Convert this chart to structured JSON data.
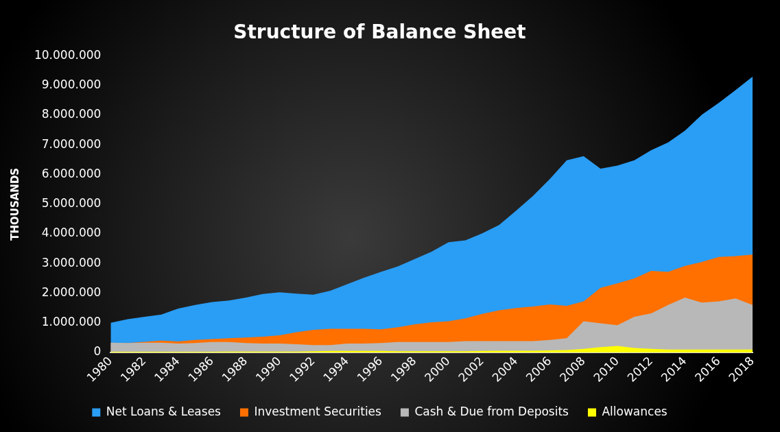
{
  "chart_data": {
    "type": "area",
    "title": "Structure of Balance Sheet",
    "ylabel": "THOUSANDS",
    "x": [
      1980,
      1981,
      1982,
      1983,
      1984,
      1985,
      1986,
      1987,
      1988,
      1989,
      1990,
      1991,
      1992,
      1993,
      1994,
      1995,
      1996,
      1997,
      1998,
      1999,
      2000,
      2001,
      2002,
      2003,
      2004,
      2005,
      2006,
      2007,
      2008,
      2009,
      2010,
      2011,
      2012,
      2013,
      2014,
      2015,
      2016,
      2017,
      2018
    ],
    "xlim": [
      1980,
      2018
    ],
    "xticks": [
      1980,
      1982,
      1984,
      1986,
      1988,
      1990,
      1992,
      1994,
      1996,
      1998,
      2000,
      2002,
      2004,
      2006,
      2008,
      2010,
      2012,
      2014,
      2016,
      2018
    ],
    "ylim": [
      0,
      10000000
    ],
    "yticks": [
      {
        "value": 0,
        "label": "0"
      },
      {
        "value": 1000000,
        "label": "1.000.000"
      },
      {
        "value": 2000000,
        "label": "2.000.000"
      },
      {
        "value": 3000000,
        "label": "3.000.000"
      },
      {
        "value": 4000000,
        "label": "4.000.000"
      },
      {
        "value": 5000000,
        "label": "5.000.000"
      },
      {
        "value": 6000000,
        "label": "6.000.000"
      },
      {
        "value": 7000000,
        "label": "7.000.000"
      },
      {
        "value": 8000000,
        "label": "8.000.000"
      },
      {
        "value": 9000000,
        "label": "9.000.000"
      },
      {
        "value": 10000000,
        "label": "10.000.000"
      }
    ],
    "grid": false,
    "legend": "bottom",
    "series": [
      {
        "name": "Net Loans & Leases",
        "color": "#2a9df4",
        "values": [
          1000000,
          1120000,
          1200000,
          1280000,
          1480000,
          1600000,
          1700000,
          1750000,
          1850000,
          1970000,
          2030000,
          1980000,
          1950000,
          2080000,
          2300000,
          2520000,
          2720000,
          2900000,
          3150000,
          3400000,
          3720000,
          3780000,
          4020000,
          4300000,
          4780000,
          5280000,
          5850000,
          6480000,
          6620000,
          6200000,
          6300000,
          6480000,
          6820000,
          7080000,
          7480000,
          8020000,
          8420000,
          8850000,
          9300000
        ]
      },
      {
        "name": "Investment Securities",
        "color": "#ff7000",
        "values": [
          330000,
          320000,
          360000,
          400000,
          370000,
          420000,
          450000,
          480000,
          500000,
          530000,
          580000,
          680000,
          760000,
          800000,
          800000,
          800000,
          780000,
          850000,
          950000,
          1020000,
          1050000,
          1150000,
          1300000,
          1420000,
          1500000,
          1550000,
          1620000,
          1570000,
          1720000,
          2180000,
          2330000,
          2500000,
          2750000,
          2720000,
          2920000,
          3050000,
          3220000,
          3250000,
          3300000
        ]
      },
      {
        "name": "Cash & Due from Deposits",
        "color": "#b8b8b8",
        "values": [
          330000,
          320000,
          330000,
          330000,
          300000,
          320000,
          350000,
          350000,
          320000,
          300000,
          300000,
          280000,
          250000,
          250000,
          300000,
          300000,
          320000,
          350000,
          350000,
          350000,
          350000,
          380000,
          380000,
          380000,
          380000,
          380000,
          420000,
          480000,
          1050000,
          980000,
          920000,
          1200000,
          1320000,
          1600000,
          1850000,
          1680000,
          1720000,
          1820000,
          1600000
        ]
      },
      {
        "name": "Allowances",
        "color": "#ffff00",
        "values": [
          20000,
          20000,
          20000,
          20000,
          20000,
          20000,
          20000,
          30000,
          30000,
          30000,
          30000,
          30000,
          40000,
          50000,
          50000,
          50000,
          50000,
          40000,
          40000,
          40000,
          40000,
          40000,
          50000,
          60000,
          60000,
          60000,
          70000,
          80000,
          120000,
          180000,
          220000,
          150000,
          120000,
          100000,
          100000,
          100000,
          100000,
          100000,
          100000
        ]
      }
    ]
  }
}
